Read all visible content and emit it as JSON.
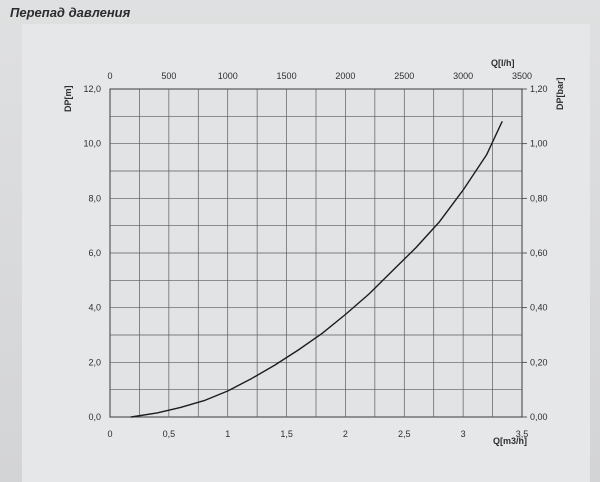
{
  "heading": "Перепад давления",
  "chart_data": {
    "type": "line",
    "title": "",
    "xlabel": "Q[m3/h]",
    "ylabel": "DP[m]",
    "x2label": "Q[l/h]",
    "y2label": "DP[bar]",
    "xlim": [
      0,
      3.5
    ],
    "ylim": [
      0,
      12
    ],
    "x2lim": [
      0,
      3500
    ],
    "y2lim": [
      0,
      1.2
    ],
    "grid": true,
    "x_ticks": [
      "0",
      "0,5",
      "1",
      "1,5",
      "2",
      "2,5",
      "3",
      "3,5"
    ],
    "y_ticks": [
      "0,0",
      "2,0",
      "4,0",
      "6,0",
      "8,0",
      "10,0",
      "12,0"
    ],
    "x2_ticks": [
      "0",
      "500",
      "1000",
      "1500",
      "2000",
      "2500",
      "3000",
      "3500"
    ],
    "y2_ticks": [
      "0,00",
      "0,20",
      "0,40",
      "0,60",
      "0,80",
      "1,00",
      "1,20"
    ],
    "series": [
      {
        "x": [
          0.18,
          0.4,
          0.6,
          0.8,
          1.0,
          1.2,
          1.4,
          1.6,
          1.8,
          2.0,
          2.2,
          2.4,
          2.6,
          2.8,
          3.0,
          3.2,
          3.33
        ],
        "y": [
          0.0,
          0.15,
          0.35,
          0.6,
          0.95,
          1.4,
          1.9,
          2.45,
          3.05,
          3.75,
          4.5,
          5.35,
          6.2,
          7.15,
          8.3,
          9.6,
          10.8
        ]
      }
    ],
    "line_color": "#1c1d20"
  }
}
